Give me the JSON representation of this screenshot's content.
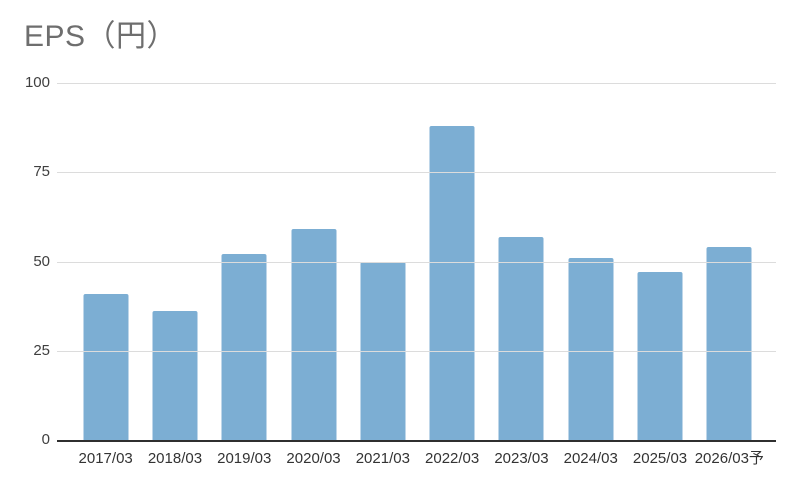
{
  "title": "EPS（円）",
  "colors": {
    "bar": "#7caed3",
    "grid": "#dcdcdc",
    "axis": "#2f2f2f",
    "title_text": "#6e6e6e",
    "ytick_text": "#3f3f3f",
    "xtick_text": "#333333",
    "background": "#ffffff"
  },
  "chart_data": {
    "type": "bar",
    "title": "EPS（円）",
    "categories": [
      "2017/03",
      "2018/03",
      "2019/03",
      "2020/03",
      "2021/03",
      "2022/03",
      "2023/03",
      "2024/03",
      "2025/03",
      "2026/03予"
    ],
    "values": [
      41,
      36,
      52,
      59,
      50,
      88,
      57,
      51,
      47,
      54
    ],
    "xlabel": "",
    "ylabel": "",
    "ylim": [
      0,
      100
    ],
    "yticks": [
      0,
      25,
      50,
      75,
      100
    ],
    "grid": true,
    "legend": "none",
    "bar_color": "#7caed3",
    "note": "2026/03予 is a forecast (予) bar"
  }
}
